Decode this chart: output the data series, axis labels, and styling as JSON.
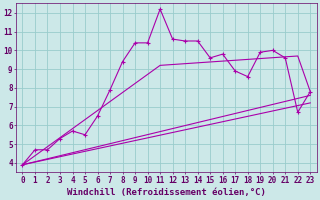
{
  "xlabel": "Windchill (Refroidissement éolien,°C)",
  "background_color": "#cce8e8",
  "grid_color": "#99cccc",
  "line_color": "#aa00aa",
  "xlim": [
    -0.5,
    23.5
  ],
  "ylim": [
    3.5,
    12.5
  ],
  "xticks": [
    0,
    1,
    2,
    3,
    4,
    5,
    6,
    7,
    8,
    9,
    10,
    11,
    12,
    13,
    14,
    15,
    16,
    17,
    18,
    19,
    20,
    21,
    22,
    23
  ],
  "yticks": [
    4,
    5,
    6,
    7,
    8,
    9,
    10,
    11,
    12
  ],
  "line1_x": [
    0,
    1,
    2,
    3,
    4,
    5,
    6,
    7,
    8,
    9,
    10,
    11,
    12,
    13,
    14,
    15,
    16,
    17,
    18,
    19,
    20,
    21,
    22,
    23
  ],
  "line1_y": [
    3.9,
    4.7,
    4.7,
    5.3,
    5.7,
    5.5,
    6.5,
    7.9,
    9.4,
    10.4,
    10.4,
    12.2,
    10.6,
    10.5,
    10.5,
    9.6,
    9.8,
    8.9,
    8.6,
    9.9,
    10.0,
    9.6,
    6.7,
    7.8
  ],
  "line2_x": [
    0,
    23
  ],
  "line2_y": [
    3.9,
    7.6
  ],
  "line3_x": [
    0,
    11,
    22,
    23
  ],
  "line3_y": [
    3.9,
    9.2,
    9.7,
    7.8
  ],
  "line4_x": [
    0,
    23
  ],
  "line4_y": [
    3.9,
    7.2
  ],
  "font_color": "#660066",
  "tick_fontsize": 5.5,
  "label_fontsize": 6.5
}
